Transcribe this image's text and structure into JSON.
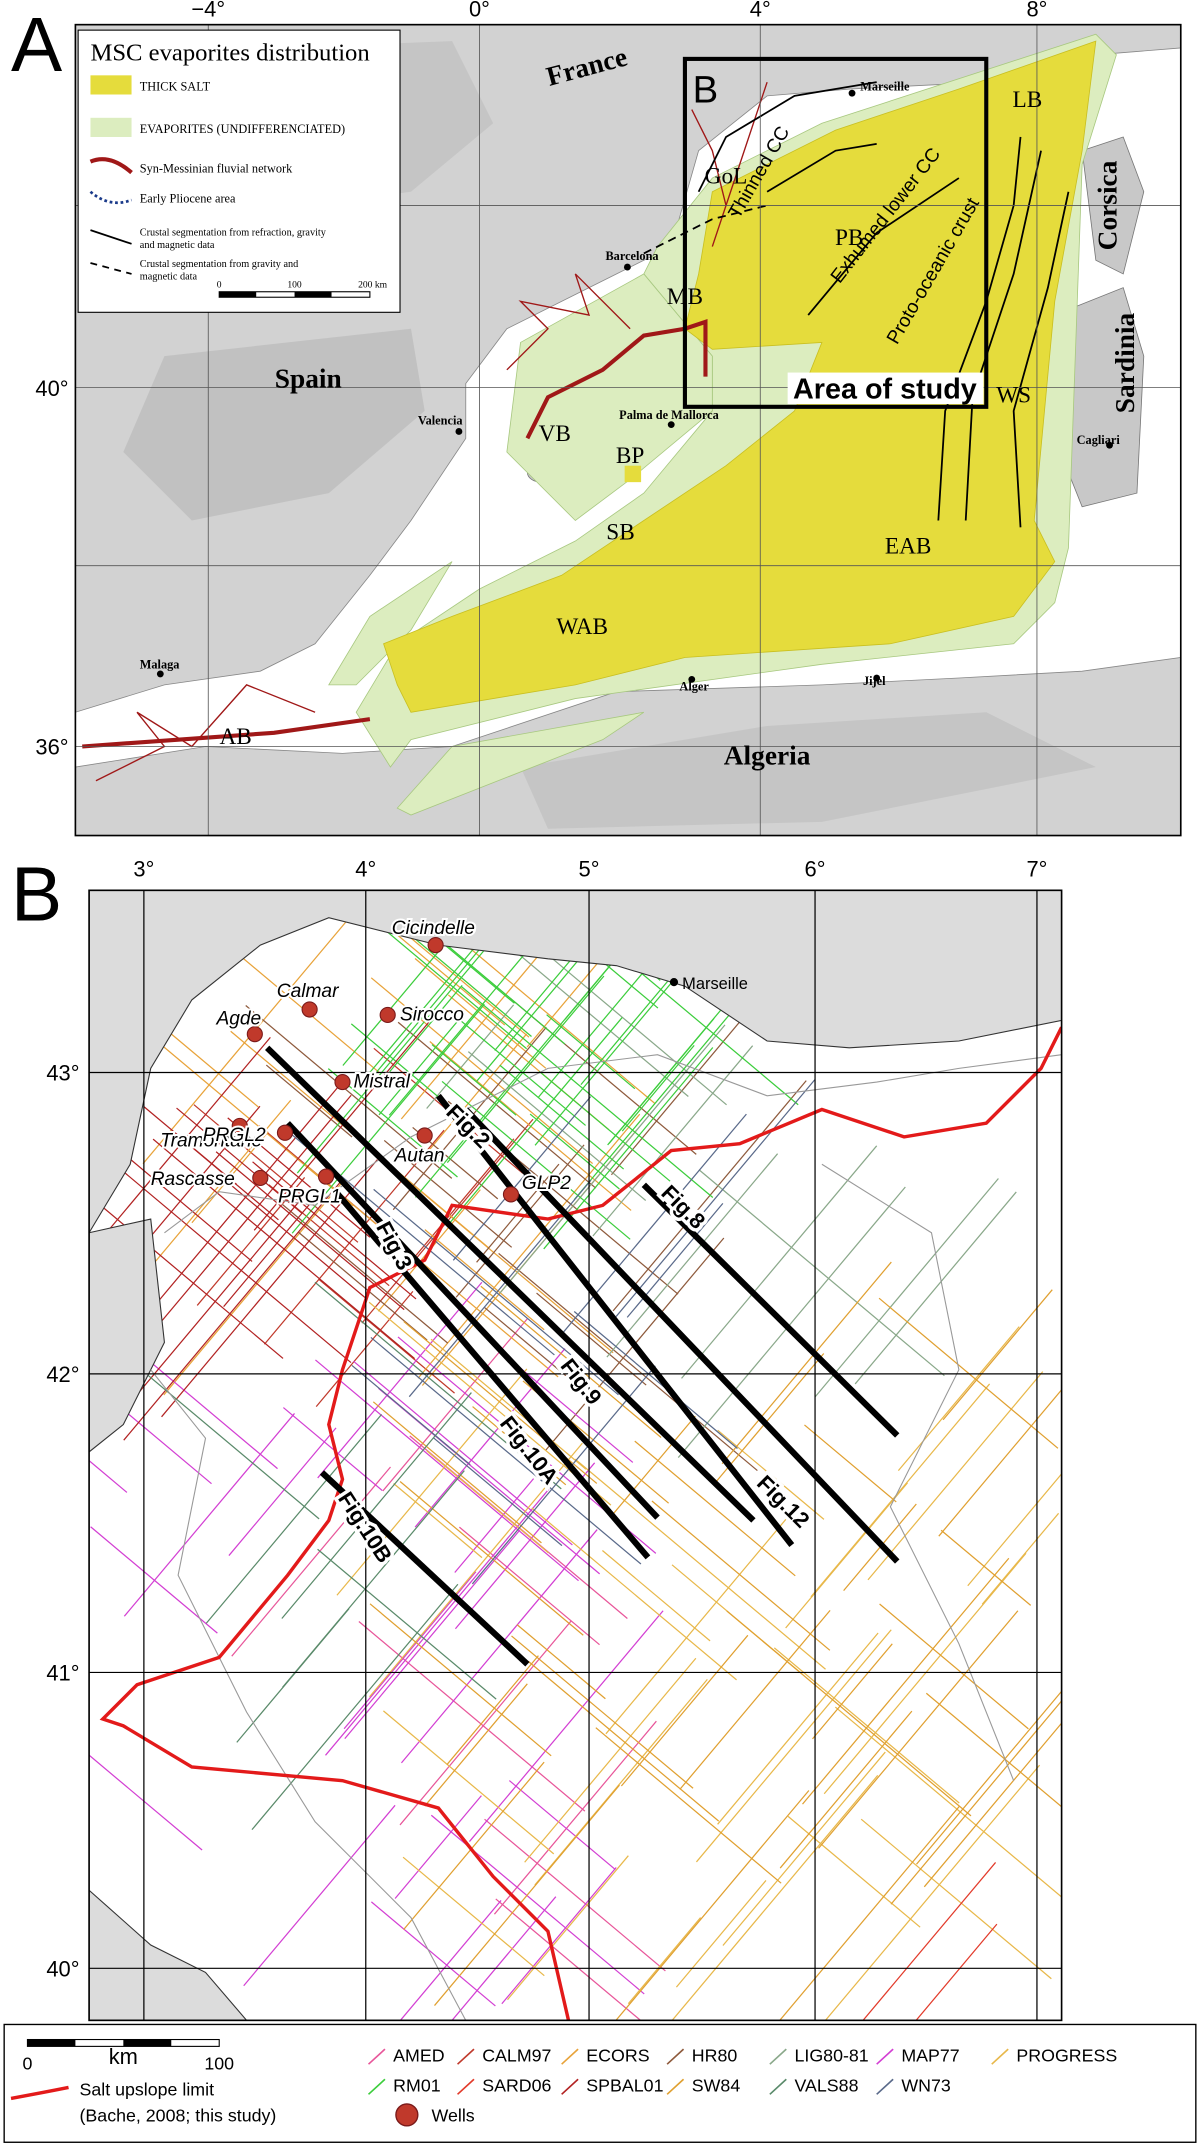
{
  "panel_a": {
    "letter": "A",
    "lon_labels": [
      "−4°",
      "0°",
      "4°",
      "8°"
    ],
    "lat_labels": [
      "40°",
      "36°"
    ],
    "legend": {
      "title": "MSC evaporites distribution",
      "items": [
        [
          "THICK SALT"
        ],
        [
          "EVAPORITES (UNDIFFERENCIATED)"
        ],
        [
          "Syn-Messinian fluvial network"
        ],
        [
          "Early Pliocene area"
        ],
        [
          "Crustal segmentation from refraction, gravity",
          "and magnetic data"
        ],
        [
          "Crustal segmentation from gravity and",
          "magnetic data"
        ]
      ],
      "scale": [
        "0",
        "100",
        "200 km"
      ]
    },
    "countries": [
      "France",
      "Spain",
      "Algeria",
      "Corsica",
      "Sardinia"
    ],
    "basins": [
      "GoL",
      "LB",
      "MB",
      "VB",
      "BP",
      "SB",
      "WAB",
      "EAB",
      "PB",
      "AB",
      "WS"
    ],
    "crust": [
      "Thinned CC",
      "Exhumed lower CC",
      "Proto-oceanic crust"
    ],
    "cities": [
      "Marseille",
      "Barcelona",
      "Valencia",
      "Palma de Mallorca",
      "Cagliari",
      "Malaga",
      "Alger",
      "Jijel"
    ],
    "inset_letter": "B",
    "area_label": "Area of study"
  },
  "panel_b": {
    "letter": "B",
    "lon_labels": [
      "3°",
      "4°",
      "5°",
      "6°",
      "7°"
    ],
    "lat_labels": [
      "43°",
      "42°",
      "41°",
      "40°"
    ],
    "city": "Marseille",
    "wells": [
      "Cicindelle",
      "Calmar",
      "Sirocco",
      "Agde",
      "Mistral",
      "Tramontane",
      "PRGL2",
      "Autan",
      "GLP2",
      "Rascasse",
      "PRGL1"
    ],
    "figures": [
      "Fig.2",
      "Fig.8",
      "Fig.3",
      "Fig.9",
      "Fig.12",
      "Fig.10A",
      "Fig.10B"
    ]
  },
  "legend": {
    "scale": [
      "0",
      "km",
      "100"
    ],
    "salt_limit": [
      "Salt upslope limit",
      "(Bache, 2008; this study)"
    ],
    "wells": "Wells",
    "surveys": [
      {
        "name": "AMED",
        "color": "#e8569a"
      },
      {
        "name": "CALM97",
        "color": "#c0392b"
      },
      {
        "name": "ECORS",
        "color": "#e8a33a"
      },
      {
        "name": "HR80",
        "color": "#8e5a3c"
      },
      {
        "name": "LIG80-81",
        "color": "#8aa88a"
      },
      {
        "name": "MAP77",
        "color": "#d33fd3"
      },
      {
        "name": "PROGRESS",
        "color": "#e8b84a"
      },
      {
        "name": "RM01",
        "color": "#3ccd3c"
      },
      {
        "name": "SARD06",
        "color": "#e23a2a"
      },
      {
        "name": "SPBAL01",
        "color": "#b22222"
      },
      {
        "name": "SW84",
        "color": "#e0a030"
      },
      {
        "name": "VALS88",
        "color": "#5a8a6a"
      },
      {
        "name": "WN73",
        "color": "#5a6a8a"
      }
    ]
  }
}
